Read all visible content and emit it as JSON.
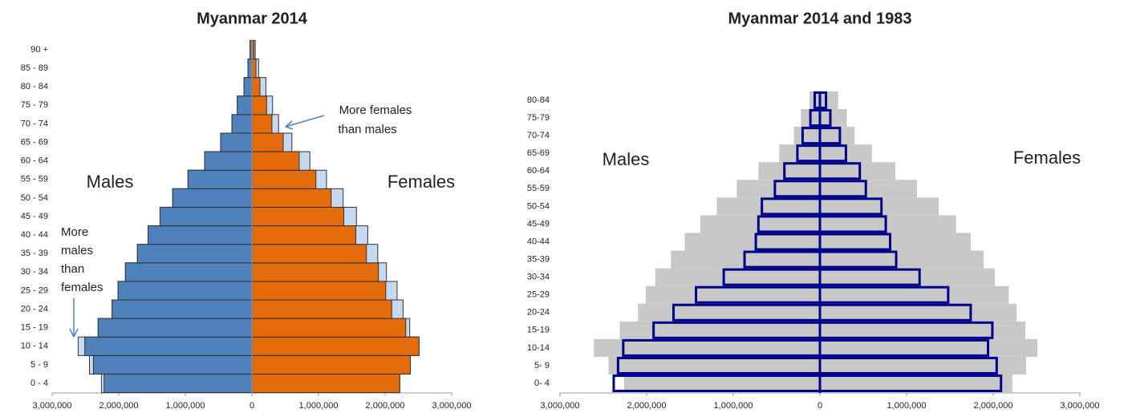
{
  "chart_data": [
    {
      "type": "pyramid",
      "title": "Myanmar 2014",
      "categories": [
        "0 - 4",
        "5 - 9",
        "10 - 14",
        "15 - 19",
        "20 - 24",
        "25 - 29",
        "30 - 34",
        "35 - 39",
        "40 - 44",
        "45 - 49",
        "50 - 54",
        "55 - 59",
        "60 - 64",
        "65 - 69",
        "70 - 74",
        "75 - 79",
        "80 - 84",
        "85 - 89",
        "90 +"
      ],
      "series": [
        {
          "name": "Males",
          "color": "#4f81bd",
          "values": [
            2260000,
            2440000,
            2610000,
            2310000,
            2100000,
            2010000,
            1900000,
            1720000,
            1560000,
            1380000,
            1190000,
            960000,
            710000,
            470000,
            300000,
            220000,
            120000,
            60000,
            30000
          ]
        },
        {
          "name": "Females",
          "color": "#e46c0a",
          "values": [
            2220000,
            2380000,
            2510000,
            2370000,
            2270000,
            2180000,
            2020000,
            1890000,
            1740000,
            1570000,
            1370000,
            1120000,
            870000,
            600000,
            400000,
            310000,
            210000,
            100000,
            50000
          ]
        }
      ],
      "excess_color": "#c6d9f1",
      "annotations": [
        [
          "More females",
          "than males"
        ],
        [
          "More",
          "males",
          "than",
          "females"
        ]
      ],
      "xlim": [
        -3000000,
        3000000
      ],
      "xticks": [
        {
          "value": -3000000,
          "label": "3,000,000"
        },
        {
          "value": -2000000,
          "label": "2,000,000"
        },
        {
          "value": -1000000,
          "label": "1,000,000"
        },
        0,
        {
          "value": 1000000,
          "label": "1,000,000"
        },
        {
          "value": 2000000,
          "label": "2,000,000"
        },
        {
          "value": 3000000,
          "label": "3,000,000"
        }
      ]
    },
    {
      "type": "pyramid-compare",
      "title": "Myanmar 2014 and 1983",
      "categories": [
        "0- 4",
        "5- 9",
        "10-14",
        "15-19",
        "20-24",
        "25-29",
        "30-34",
        "35-39",
        "40-44",
        "45-49",
        "50-54",
        "55-59",
        "60-64",
        "65-69",
        "70-74",
        "75-79",
        "80-84"
      ],
      "color_2014": "#c8c8c8",
      "color_1983": "#00008b",
      "series": [
        {
          "name": "Males",
          "values_2014": [
            2260000,
            2440000,
            2610000,
            2310000,
            2100000,
            2010000,
            1900000,
            1720000,
            1560000,
            1380000,
            1190000,
            960000,
            710000,
            470000,
            300000,
            220000,
            120000
          ],
          "values_1983": [
            2380000,
            2330000,
            2270000,
            1920000,
            1690000,
            1430000,
            1110000,
            870000,
            740000,
            710000,
            670000,
            520000,
            410000,
            260000,
            200000,
            110000,
            60000
          ]
        },
        {
          "name": "Females",
          "values_2014": [
            2220000,
            2380000,
            2510000,
            2370000,
            2270000,
            2180000,
            2020000,
            1890000,
            1740000,
            1570000,
            1370000,
            1120000,
            870000,
            600000,
            400000,
            310000,
            210000
          ],
          "values_1983": [
            2090000,
            2040000,
            1940000,
            1990000,
            1740000,
            1480000,
            1150000,
            880000,
            810000,
            760000,
            710000,
            530000,
            460000,
            300000,
            230000,
            120000,
            70000
          ]
        }
      ],
      "xlim": [
        -3000000,
        3000000
      ],
      "xticks": [
        {
          "value": -3000000,
          "label": "3,000,000"
        },
        {
          "value": -2000000,
          "label": "2,000,000"
        },
        {
          "value": -1000000,
          "label": "1,000,000"
        },
        0,
        {
          "value": 1000000,
          "label": "1,000,000"
        },
        {
          "value": 2000000,
          "label": "2,000,000"
        },
        {
          "value": 3000000,
          "label": "3,000,000"
        }
      ]
    }
  ]
}
